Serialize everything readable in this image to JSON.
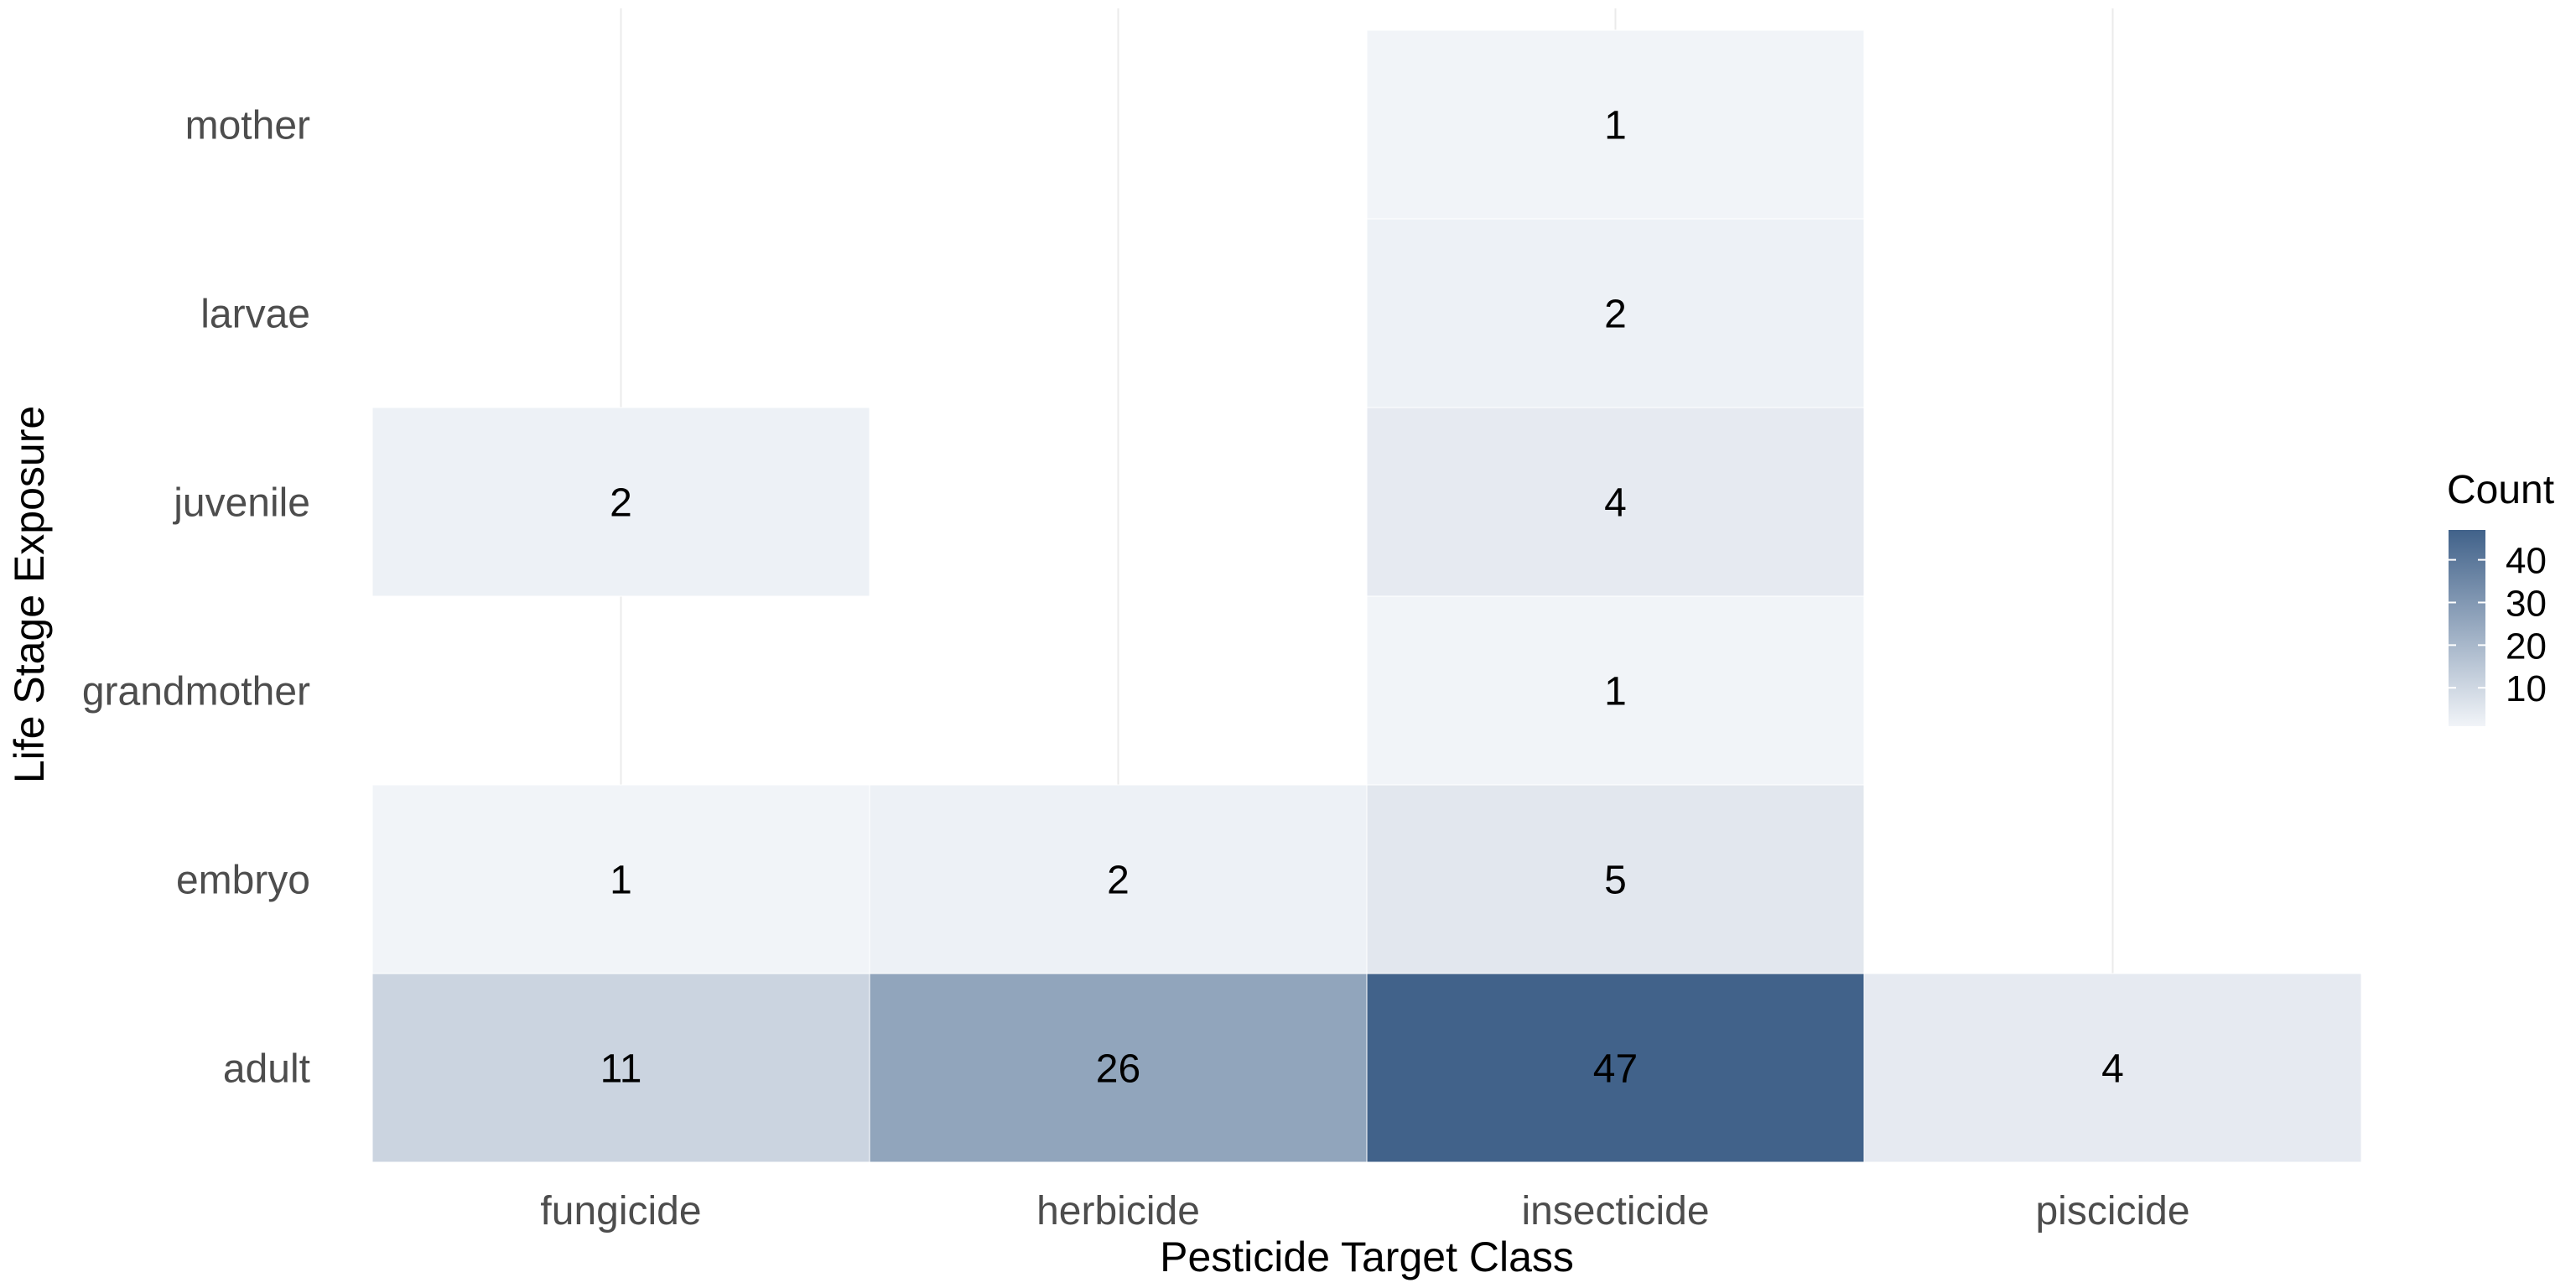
{
  "chart_data": {
    "type": "heatmap",
    "xlabel": "Pesticide Target Class",
    "ylabel": "Life Stage Exposure",
    "x_categories": [
      "fungicide",
      "herbicide",
      "insecticide",
      "piscicide"
    ],
    "y_categories": [
      "adult",
      "embryo",
      "grandmother",
      "juvenile",
      "larvae",
      "mother"
    ],
    "cells": [
      {
        "x": "fungicide",
        "y": "adult",
        "value": 11
      },
      {
        "x": "herbicide",
        "y": "adult",
        "value": 26
      },
      {
        "x": "insecticide",
        "y": "adult",
        "value": 47
      },
      {
        "x": "piscicide",
        "y": "adult",
        "value": 4
      },
      {
        "x": "fungicide",
        "y": "embryo",
        "value": 1
      },
      {
        "x": "herbicide",
        "y": "embryo",
        "value": 2
      },
      {
        "x": "insecticide",
        "y": "embryo",
        "value": 5
      },
      {
        "x": "insecticide",
        "y": "grandmother",
        "value": 1
      },
      {
        "x": "fungicide",
        "y": "juvenile",
        "value": 2
      },
      {
        "x": "insecticide",
        "y": "juvenile",
        "value": 4
      },
      {
        "x": "insecticide",
        "y": "larvae",
        "value": 2
      },
      {
        "x": "insecticide",
        "y": "mother",
        "value": 1
      }
    ],
    "legend": {
      "title": "Count",
      "position": "right",
      "breaks": [
        10,
        20,
        30,
        40
      ],
      "range": [
        1,
        47
      ],
      "low_color": "#f1f4f8",
      "high_color": "#41628a"
    },
    "grid": true
  }
}
